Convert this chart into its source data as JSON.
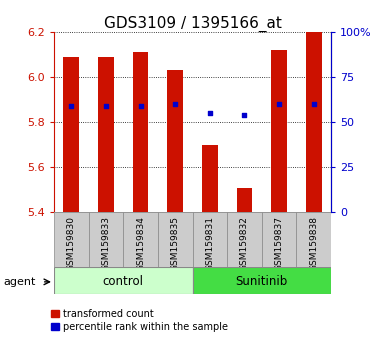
{
  "title": "GDS3109 / 1395166_at",
  "samples": [
    "GSM159830",
    "GSM159833",
    "GSM159834",
    "GSM159835",
    "GSM159831",
    "GSM159832",
    "GSM159837",
    "GSM159838"
  ],
  "bar_values": [
    6.09,
    6.09,
    6.11,
    6.03,
    5.7,
    5.51,
    6.12,
    6.2
  ],
  "bar_base": 5.4,
  "blue_dot_y": [
    5.87,
    5.87,
    5.87,
    5.88,
    5.84,
    5.83,
    5.88,
    5.88
  ],
  "ylim": [
    5.4,
    6.2
  ],
  "y2lim": [
    0,
    100
  ],
  "yticks": [
    5.4,
    5.6,
    5.8,
    6.0,
    6.2
  ],
  "y2ticks": [
    0,
    25,
    50,
    75,
    100
  ],
  "bar_color": "#cc1100",
  "dot_color": "#0000cc",
  "control_label": "control",
  "sunitinib_label": "Sunitinib",
  "agent_label": "agent",
  "legend_red": "transformed count",
  "legend_blue": "percentile rank within the sample",
  "control_bg": "#ccffcc",
  "sunitinib_bg": "#44dd44",
  "sample_bg": "#cccccc",
  "title_fontsize": 11,
  "tick_fontsize": 8,
  "sample_fontsize": 6.5,
  "group_fontsize": 8.5,
  "legend_fontsize": 7,
  "agent_fontsize": 8
}
